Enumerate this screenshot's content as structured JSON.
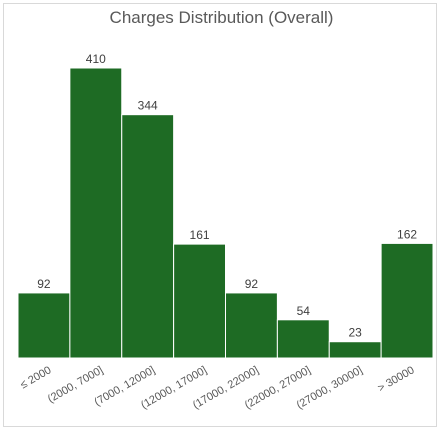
{
  "chart_data": {
    "type": "bar",
    "title": "Charges Distribution (Overall)",
    "xlabel": "",
    "ylabel": "",
    "categories": [
      "≤ 2000",
      "(2000, 7000]",
      "(7000, 12000]",
      "(12000, 17000]",
      "(17000, 22000]",
      "(22000, 27000]",
      "(27000, 30000]",
      "> 30000"
    ],
    "values": [
      92,
      410,
      344,
      161,
      92,
      54,
      23,
      162
    ],
    "ylim": [
      0,
      410
    ],
    "bar_color": "#1e6b24",
    "grid": false,
    "data_labels": true
  }
}
